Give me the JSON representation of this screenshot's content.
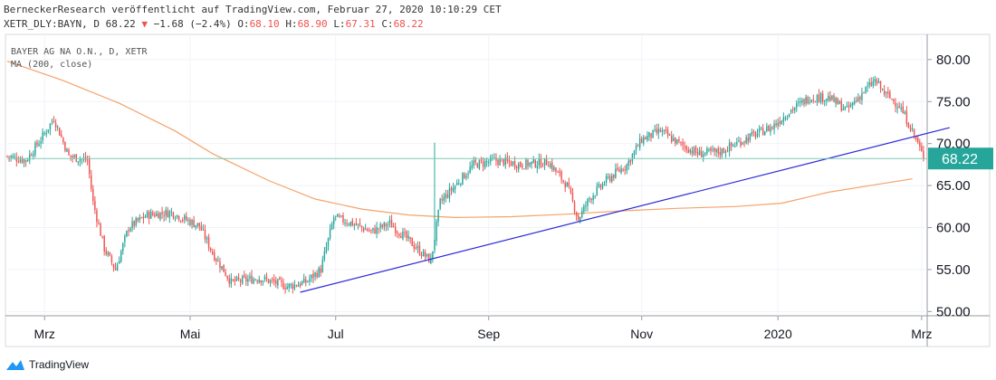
{
  "header": {
    "line1": "BerneckerResearch veröffentlicht auf TradingView.com, Februar 27, 2020 10:10:29 CET",
    "symbol": "XETR_DLY:BAYN, D",
    "last": "68.22",
    "arrow": "▼",
    "change": "−1.68 (−2.4%)",
    "o_label": "O:",
    "o_val": "68.10",
    "h_label": "H:",
    "h_val": "68.90",
    "l_label": "L:",
    "l_val": "67.31",
    "c_label": "C:",
    "c_val": "68.22"
  },
  "footer": {
    "brand": "TradingView"
  },
  "colors": {
    "up": "#26a69a",
    "down": "#ef5350",
    "ma": "#f5a26a",
    "trend": "#2b2bd8",
    "lastline": "#7ec9b5",
    "badge": "#26a69a"
  },
  "chart_data": {
    "type": "candlestick",
    "title": "BAYER AG NA O.N., D, XETR",
    "legend": [
      "BAYER AG NA O.N., D, XETR",
      "MA (200, close)"
    ],
    "ylim": [
      49.5,
      83
    ],
    "y_ticks": [
      "80.00",
      "75.00",
      "70.00",
      "65.00",
      "60.00",
      "55.00",
      "50.00"
    ],
    "x_ticks": [
      "Mrz",
      "Mai",
      "Jul",
      "Sep",
      "Nov",
      "2020",
      "Mrz"
    ],
    "x_tick_index": [
      20,
      98,
      176,
      258,
      340,
      413,
      490
    ],
    "last_price": 68.22,
    "last_label": "68.22",
    "ma_points": [
      [
        0,
        79.8
      ],
      [
        30,
        77.5
      ],
      [
        60,
        74.8
      ],
      [
        90,
        71.5
      ],
      [
        110,
        68.8
      ],
      [
        140,
        65.6
      ],
      [
        165,
        63.4
      ],
      [
        190,
        62.2
      ],
      [
        215,
        61.5
      ],
      [
        240,
        61.2
      ],
      [
        270,
        61.3
      ],
      [
        300,
        61.6
      ],
      [
        330,
        62.0
      ],
      [
        360,
        62.3
      ],
      [
        390,
        62.5
      ],
      [
        415,
        62.9
      ],
      [
        440,
        64.2
      ],
      [
        465,
        65.1
      ],
      [
        485,
        65.8
      ]
    ],
    "trendline": [
      [
        157,
        52.3
      ],
      [
        505,
        71.9
      ]
    ],
    "anchors": [
      [
        0,
        68.5
      ],
      [
        10,
        68.0
      ],
      [
        18,
        70.5
      ],
      [
        25,
        73.0
      ],
      [
        33,
        68.5
      ],
      [
        43,
        68.0
      ],
      [
        46,
        63.0
      ],
      [
        52,
        57.5
      ],
      [
        58,
        55.0
      ],
      [
        65,
        60.0
      ],
      [
        75,
        61.5
      ],
      [
        88,
        61.8
      ],
      [
        95,
        61.0
      ],
      [
        103,
        60.2
      ],
      [
        110,
        57.0
      ],
      [
        120,
        53.5
      ],
      [
        135,
        54.0
      ],
      [
        150,
        53.0
      ],
      [
        160,
        53.5
      ],
      [
        168,
        55.0
      ],
      [
        175,
        61.2
      ],
      [
        185,
        60.5
      ],
      [
        195,
        59.5
      ],
      [
        205,
        60.5
      ],
      [
        215,
        58.5
      ],
      [
        222,
        57.0
      ],
      [
        227,
        56.0
      ],
      [
        232,
        63.0
      ],
      [
        240,
        65.0
      ],
      [
        250,
        67.5
      ],
      [
        262,
        68.0
      ],
      [
        275,
        67.5
      ],
      [
        290,
        67.8
      ],
      [
        300,
        65.0
      ],
      [
        306,
        61.0
      ],
      [
        312,
        63.5
      ],
      [
        322,
        65.8
      ],
      [
        332,
        67.5
      ],
      [
        340,
        70.5
      ],
      [
        350,
        71.5
      ],
      [
        360,
        70.0
      ],
      [
        370,
        68.8
      ],
      [
        382,
        69.0
      ],
      [
        395,
        70.5
      ],
      [
        410,
        72.0
      ],
      [
        420,
        74.0
      ],
      [
        430,
        75.5
      ],
      [
        440,
        75.5
      ],
      [
        450,
        74.0
      ],
      [
        458,
        76.0
      ],
      [
        465,
        77.5
      ],
      [
        470,
        76.0
      ],
      [
        478,
        74.5
      ],
      [
        484,
        72.0
      ],
      [
        488,
        70.0
      ],
      [
        491,
        68.22
      ]
    ]
  }
}
